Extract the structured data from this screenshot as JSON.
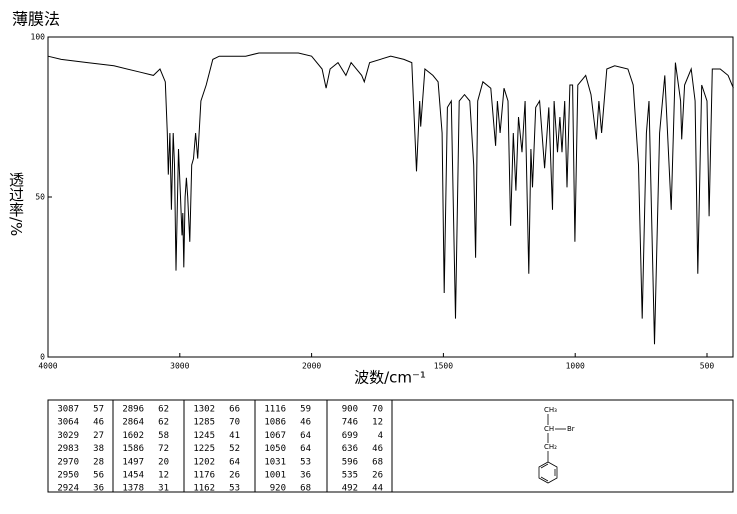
{
  "chart_data": {
    "type": "line",
    "title": "薄膜法",
    "x_label": "波数/cm⁻¹",
    "y_label": "透过率/%",
    "color": "#000000",
    "xlim": [
      4000,
      400
    ],
    "xticks": [
      4000,
      3000,
      2000,
      1500,
      1000,
      500
    ],
    "ylim": [
      0,
      100
    ],
    "yticks": [
      0,
      50,
      100
    ],
    "x": [
      4000,
      3900,
      3700,
      3500,
      3300,
      3200,
      3150,
      3110,
      3095,
      3087,
      3075,
      3064,
      3050,
      3040,
      3029,
      3010,
      2995,
      2983,
      2977,
      2970,
      2960,
      2950,
      2940,
      2924,
      2910,
      2896,
      2880,
      2864,
      2840,
      2800,
      2750,
      2700,
      2600,
      2500,
      2400,
      2300,
      2200,
      2100,
      2000,
      1960,
      1945,
      1930,
      1900,
      1870,
      1850,
      1810,
      1800,
      1780,
      1700,
      1650,
      1620,
      1602,
      1590,
      1586,
      1570,
      1540,
      1520,
      1505,
      1497,
      1485,
      1470,
      1454,
      1440,
      1420,
      1400,
      1385,
      1378,
      1370,
      1350,
      1320,
      1302,
      1295,
      1285,
      1270,
      1255,
      1245,
      1235,
      1225,
      1215,
      1202,
      1190,
      1176,
      1168,
      1162,
      1150,
      1135,
      1116,
      1100,
      1086,
      1080,
      1067,
      1058,
      1050,
      1040,
      1031,
      1020,
      1010,
      1001,
      990,
      960,
      940,
      920,
      910,
      900,
      880,
      850,
      800,
      780,
      760,
      746,
      730,
      720,
      699,
      680,
      660,
      636,
      620,
      600,
      596,
      585,
      560,
      545,
      535,
      520,
      500,
      492,
      480,
      450,
      420,
      400
    ],
    "values": [
      94,
      93,
      92,
      91,
      89,
      88,
      90,
      86,
      70,
      57,
      70,
      46,
      70,
      60,
      27,
      65,
      50,
      38,
      45,
      28,
      50,
      56,
      50,
      36,
      60,
      62,
      70,
      62,
      80,
      85,
      93,
      94,
      94,
      94,
      95,
      95,
      95,
      95,
      94,
      90,
      84,
      90,
      92,
      88,
      92,
      88,
      86,
      92,
      94,
      93,
      92,
      58,
      80,
      72,
      90,
      88,
      86,
      70,
      20,
      78,
      80,
      12,
      80,
      82,
      80,
      60,
      31,
      80,
      86,
      84,
      66,
      80,
      70,
      84,
      80,
      41,
      70,
      52,
      75,
      64,
      80,
      26,
      65,
      53,
      78,
      80,
      59,
      78,
      46,
      80,
      64,
      75,
      64,
      80,
      53,
      85,
      85,
      36,
      85,
      88,
      82,
      68,
      80,
      70,
      90,
      91,
      90,
      85,
      60,
      12,
      70,
      80,
      4,
      70,
      88,
      46,
      92,
      80,
      68,
      85,
      90,
      80,
      26,
      85,
      80,
      44,
      90,
      90,
      88,
      84
    ]
  },
  "peak_table": {
    "rows": [
      [
        [
          "3087",
          "57"
        ],
        [
          "2896",
          "62"
        ],
        [
          "1302",
          "66"
        ],
        [
          "1116",
          "59"
        ],
        [
          "900",
          "70"
        ]
      ],
      [
        [
          "3064",
          "46"
        ],
        [
          "2864",
          "62"
        ],
        [
          "1285",
          "70"
        ],
        [
          "1086",
          "46"
        ],
        [
          "746",
          "12"
        ]
      ],
      [
        [
          "3029",
          "27"
        ],
        [
          "1602",
          "58"
        ],
        [
          "1245",
          "41"
        ],
        [
          "1067",
          "64"
        ],
        [
          "699",
          "4"
        ]
      ],
      [
        [
          "2983",
          "38"
        ],
        [
          "1586",
          "72"
        ],
        [
          "1225",
          "52"
        ],
        [
          "1050",
          "64"
        ],
        [
          "636",
          "46"
        ]
      ],
      [
        [
          "2970",
          "28"
        ],
        [
          "1497",
          "20"
        ],
        [
          "1202",
          "64"
        ],
        [
          "1031",
          "53"
        ],
        [
          "596",
          "68"
        ]
      ],
      [
        [
          "2950",
          "56"
        ],
        [
          "1454",
          "12"
        ],
        [
          "1176",
          "26"
        ],
        [
          "1001",
          "36"
        ],
        [
          "535",
          "26"
        ]
      ],
      [
        [
          "2924",
          "36"
        ],
        [
          "1378",
          "31"
        ],
        [
          "1162",
          "53"
        ],
        [
          "920",
          "68"
        ],
        [
          "492",
          "44"
        ]
      ]
    ]
  },
  "structure": {
    "labels": [
      "CH₃",
      "CH",
      "Br",
      "CH₂"
    ]
  }
}
